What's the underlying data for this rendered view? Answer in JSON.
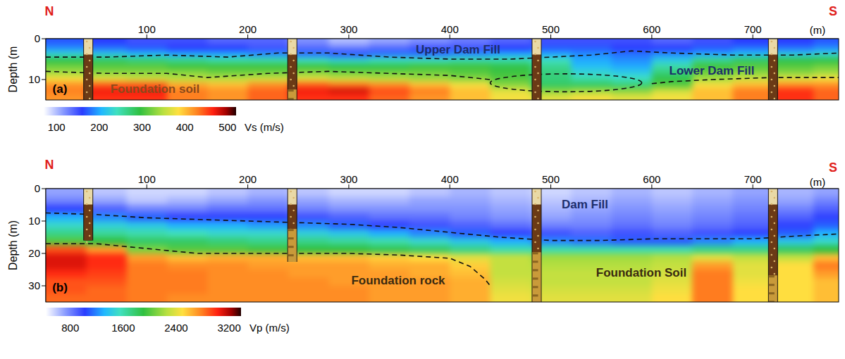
{
  "chart_data": [
    {
      "type": "heatmap",
      "panel": "(a)",
      "north_label": "N",
      "south_label": "S",
      "x_label": "(m)",
      "y_label": "Depth (m",
      "xlim": [
        0,
        785
      ],
      "ylim": [
        0,
        15
      ],
      "xticks": [
        100,
        200,
        300,
        400,
        500,
        600,
        700
      ],
      "yticks": [
        0,
        10
      ],
      "x": [
        20,
        60,
        100,
        140,
        180,
        220,
        260,
        300,
        340,
        380,
        420,
        460,
        500,
        540,
        580,
        620,
        660,
        700,
        740,
        780
      ],
      "y": [
        0.75,
        2.25,
        3.75,
        5.25,
        6.75,
        8.25,
        9.75,
        11.25,
        12.75,
        14.25
      ],
      "values": [
        [
          170,
          160,
          150,
          150,
          140,
          140,
          120,
          100,
          110,
          120,
          130,
          140,
          150,
          150,
          150,
          140,
          150,
          160,
          160,
          170
        ],
        [
          190,
          180,
          170,
          160,
          160,
          150,
          140,
          130,
          140,
          150,
          150,
          160,
          170,
          170,
          160,
          160,
          170,
          180,
          180,
          190
        ],
        [
          230,
          220,
          210,
          200,
          200,
          190,
          180,
          170,
          180,
          180,
          190,
          200,
          200,
          190,
          180,
          190,
          200,
          210,
          220,
          230
        ],
        [
          290,
          280,
          270,
          260,
          250,
          250,
          240,
          230,
          240,
          240,
          250,
          250,
          240,
          200,
          190,
          220,
          260,
          280,
          290,
          290
        ],
        [
          320,
          310,
          310,
          300,
          300,
          300,
          300,
          290,
          290,
          300,
          300,
          290,
          260,
          210,
          200,
          250,
          300,
          310,
          310,
          320
        ],
        [
          340,
          330,
          330,
          330,
          320,
          320,
          330,
          320,
          320,
          320,
          310,
          300,
          270,
          230,
          220,
          270,
          320,
          330,
          330,
          340
        ],
        [
          380,
          370,
          360,
          350,
          350,
          360,
          370,
          360,
          350,
          340,
          330,
          310,
          270,
          250,
          240,
          290,
          340,
          360,
          370,
          380
        ],
        [
          420,
          440,
          440,
          410,
          400,
          420,
          440,
          430,
          420,
          400,
          380,
          330,
          280,
          280,
          270,
          310,
          380,
          400,
          420,
          420
        ],
        [
          430,
          470,
          470,
          430,
          420,
          440,
          470,
          480,
          450,
          430,
          400,
          370,
          330,
          340,
          330,
          360,
          400,
          430,
          460,
          440
        ],
        [
          420,
          460,
          460,
          430,
          420,
          440,
          460,
          460,
          440,
          420,
          400,
          380,
          370,
          380,
          370,
          380,
          400,
          430,
          460,
          440
        ]
      ],
      "colorbar": {
        "label": "Vs (m/s)",
        "range": [
          70,
          520
        ],
        "ticks": [
          100,
          200,
          300,
          400,
          500
        ]
      },
      "boundaries": [
        {
          "x": [
            0,
            60,
            120,
            180,
            230,
            280,
            340,
            400,
            460,
            500,
            540,
            580,
            620,
            680,
            740,
            785
          ],
          "y": [
            4.5,
            4.5,
            4,
            4.5,
            3.5,
            3.5,
            4.5,
            5,
            5,
            4.5,
            4,
            3,
            3.5,
            4,
            4,
            3.5
          ]
        },
        {
          "x": [
            0,
            60,
            120,
            160,
            220,
            280,
            340,
            400,
            440
          ],
          "y": [
            8,
            8.5,
            8.5,
            9.5,
            8.5,
            8,
            8.5,
            9,
            10
          ]
        },
        {
          "x": [
            600,
            620,
            660,
            720,
            785
          ],
          "y": [
            11,
            10.5,
            10,
            9.5,
            9.5
          ]
        }
      ],
      "ellipse": {
        "x": 515,
        "y": 10.8,
        "x_radius": 75,
        "y_radius": 2.2
      },
      "boreholes": {
        "x": [
          42,
          244,
          486,
          720
        ],
        "depth": [
          16,
          22.6,
          35.7,
          48.7
        ]
      },
      "annotations": [
        "Upper Dam Fill",
        "Foundation soil",
        "Lower Dam Fill"
      ]
    },
    {
      "type": "heatmap",
      "panel": "(b)",
      "north_label": "N",
      "south_label": "S",
      "x_label": "(m)",
      "y_label": "Depth (m)",
      "xlim": [
        0,
        785
      ],
      "ylim": [
        0,
        35
      ],
      "xticks": [
        100,
        200,
        300,
        400,
        500,
        600,
        700
      ],
      "yticks": [
        0,
        10,
        20,
        30
      ],
      "x": [
        20,
        60,
        100,
        140,
        180,
        220,
        260,
        300,
        340,
        380,
        420,
        460,
        500,
        540,
        580,
        620,
        660,
        700,
        740,
        780
      ],
      "y": [
        1.25,
        3.75,
        6.25,
        8.75,
        11.25,
        13.75,
        16.25,
        18.75,
        21.25,
        23.75,
        26.25,
        28.75,
        31.25,
        33.75
      ],
      "values": [
        [
          700,
          600,
          550,
          550,
          600,
          650,
          600,
          550,
          550,
          600,
          650,
          600,
          550,
          600,
          650,
          600,
          650,
          700,
          650,
          700
        ],
        [
          800,
          700,
          600,
          650,
          700,
          750,
          700,
          650,
          650,
          700,
          700,
          650,
          600,
          650,
          700,
          650,
          700,
          750,
          700,
          800
        ],
        [
          1000,
          900,
          800,
          800,
          850,
          850,
          800,
          750,
          750,
          750,
          750,
          700,
          650,
          700,
          750,
          700,
          750,
          800,
          800,
          900
        ],
        [
          1300,
          1200,
          1100,
          1000,
          1000,
          1000,
          950,
          900,
          850,
          850,
          800,
          750,
          700,
          750,
          800,
          750,
          800,
          850,
          900,
          1000
        ],
        [
          1500,
          1450,
          1400,
          1300,
          1300,
          1250,
          1200,
          1100,
          1000,
          950,
          900,
          850,
          800,
          800,
          850,
          800,
          850,
          900,
          1000,
          1100
        ],
        [
          1700,
          1650,
          1600,
          1550,
          1500,
          1500,
          1450,
          1400,
          1300,
          1200,
          1100,
          1000,
          950,
          900,
          950,
          900,
          950,
          1000,
          1100,
          1300
        ],
        [
          2000,
          1900,
          1800,
          1800,
          1750,
          1700,
          1700,
          1650,
          1600,
          1500,
          1400,
          1300,
          1200,
          1150,
          1100,
          1100,
          1200,
          1300,
          1400,
          1500
        ],
        [
          2900,
          2700,
          2100,
          2000,
          2000,
          1950,
          1900,
          1900,
          1850,
          1800,
          1700,
          1600,
          1600,
          1600,
          1600,
          1600,
          1700,
          1700,
          1800,
          1900
        ],
        [
          3100,
          3000,
          2700,
          2600,
          2650,
          2650,
          2600,
          2600,
          2550,
          2500,
          2400,
          2300,
          2200,
          2200,
          2200,
          2250,
          2400,
          2300,
          2300,
          2600
        ],
        [
          3100,
          3000,
          2800,
          2750,
          2750,
          2700,
          2700,
          2700,
          2650,
          2650,
          2550,
          2300,
          2250,
          2250,
          2250,
          2300,
          2700,
          2400,
          2500,
          2800
        ],
        [
          3000,
          2950,
          2800,
          2800,
          2750,
          2750,
          2700,
          2700,
          2700,
          2650,
          2600,
          2300,
          2300,
          2300,
          2300,
          2350,
          2800,
          2400,
          2500,
          2700
        ],
        [
          2900,
          2900,
          2800,
          2800,
          2750,
          2750,
          2750,
          2700,
          2700,
          2700,
          2650,
          2350,
          2300,
          2300,
          2300,
          2400,
          2800,
          2450,
          2500,
          2600
        ],
        [
          2900,
          2850,
          2800,
          2800,
          2750,
          2750,
          2750,
          2750,
          2700,
          2700,
          2650,
          2400,
          2350,
          2350,
          2350,
          2450,
          2800,
          2500,
          2500,
          2600
        ],
        [
          2850,
          2850,
          2800,
          2750,
          2750,
          2750,
          2750,
          2750,
          2700,
          2700,
          2650,
          2450,
          2400,
          2400,
          2400,
          2500,
          2800,
          2500,
          2500,
          2600
        ]
      ],
      "colorbar": {
        "label": "Vp (m/s)",
        "range": [
          430,
          3380
        ],
        "ticks": [
          800,
          1600,
          2400,
          3200
        ]
      },
      "boundaries": [
        {
          "x": [
            0,
            50,
            100,
            200,
            300,
            350,
            400,
            450,
            500,
            550,
            600,
            650,
            700,
            750,
            785
          ],
          "y": [
            7.5,
            8,
            9,
            10,
            11,
            12,
            13.5,
            15,
            16,
            16,
            15.5,
            15.5,
            15.5,
            14.5,
            14
          ]
        },
        {
          "x": [
            0,
            50,
            100,
            150,
            200,
            300,
            350,
            400,
            420,
            435,
            440
          ],
          "y": [
            17,
            17,
            18.5,
            20,
            20,
            20,
            20.5,
            21.5,
            24,
            28,
            30
          ]
        }
      ],
      "boreholes": {
        "x": [
          42,
          244,
          486,
          720
        ],
        "depth": [
          16,
          22.6,
          35.7,
          48.7
        ]
      },
      "annotations": [
        "Dam Fill",
        "Foundation rock",
        "Foundation Soil"
      ]
    }
  ]
}
